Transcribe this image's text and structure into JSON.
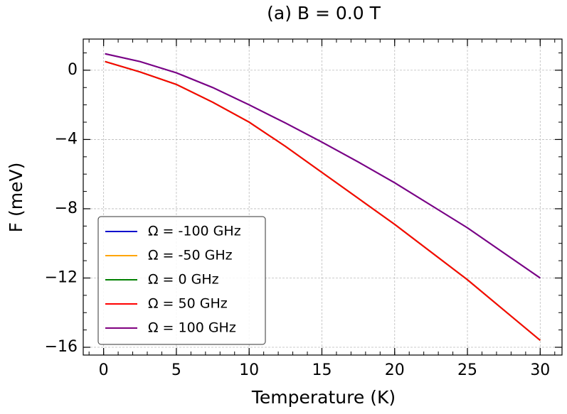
{
  "chart_data": {
    "type": "line",
    "title": "(a) B = 0.0 T",
    "x_label": "Temperature (K)",
    "y_label": "F (meV)",
    "x": [
      0.1,
      2.5,
      5,
      7.5,
      10,
      12.5,
      15,
      17.5,
      20,
      22.5,
      25,
      27.5,
      30
    ],
    "series": [
      {
        "name": "Ω = -100 GHz",
        "color": "#0000cc",
        "values": [
          0.95,
          0.5,
          -0.15,
          -1.0,
          -2.0,
          -3.05,
          -4.15,
          -5.3,
          -6.5,
          -7.8,
          -9.1,
          -10.55,
          -12.0
        ]
      },
      {
        "name": "Ω = -50 GHz",
        "color": "#ffa500",
        "values": [
          0.5,
          -0.1,
          -0.82,
          -1.85,
          -3.0,
          -4.4,
          -5.9,
          -7.4,
          -8.9,
          -10.5,
          -12.1,
          -13.85,
          -15.6
        ]
      },
      {
        "name": "Ω = 0 GHz",
        "color": "#008000",
        "values": [
          0.5,
          -0.1,
          -0.82,
          -1.85,
          -3.0,
          -4.4,
          -5.9,
          -7.4,
          -8.9,
          -10.5,
          -12.1,
          -13.85,
          -15.6
        ]
      },
      {
        "name": "Ω = 50 GHz",
        "color": "#ff0000",
        "values": [
          0.5,
          -0.1,
          -0.82,
          -1.85,
          -3.0,
          -4.4,
          -5.9,
          -7.4,
          -8.9,
          -10.5,
          -12.1,
          -13.85,
          -15.6
        ]
      },
      {
        "name": "Ω = 100 GHz",
        "color": "#800080",
        "values": [
          0.95,
          0.5,
          -0.15,
          -1.0,
          -2.0,
          -3.05,
          -4.15,
          -5.3,
          -6.5,
          -7.8,
          -9.1,
          -10.55,
          -12.0
        ]
      }
    ],
    "xlim": [
      -1.4,
      31.5
    ],
    "ylim": [
      -16.45,
      1.8
    ],
    "xticks": [
      0,
      5,
      10,
      15,
      20,
      25,
      30
    ],
    "yticks": [
      {
        "value": -16,
        "label": "−16"
      },
      {
        "value": -12,
        "label": "−12"
      },
      {
        "value": -8,
        "label": "−8"
      },
      {
        "value": -4,
        "label": "−4"
      },
      0
    ],
    "grid": true,
    "legend": "lower left"
  }
}
